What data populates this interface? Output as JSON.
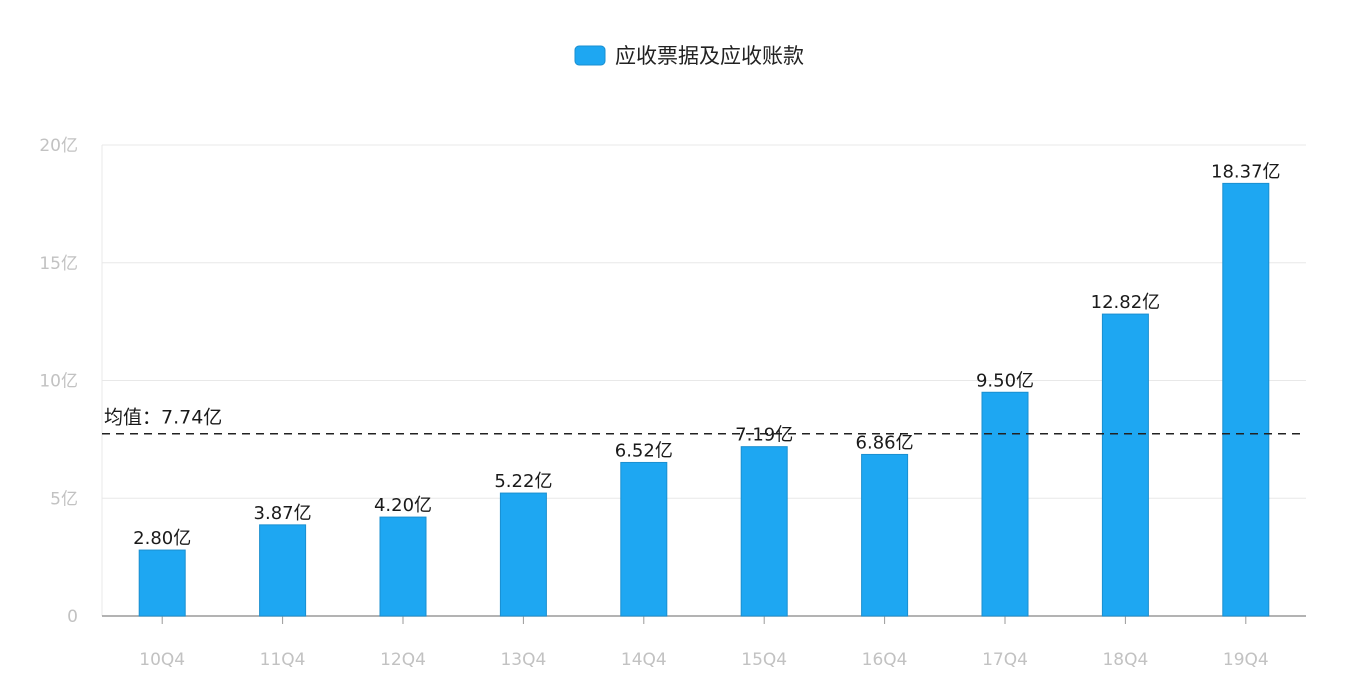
{
  "chart_data": {
    "type": "bar",
    "title": "",
    "xlabel": "",
    "ylabel": "",
    "categories": [
      "10Q4",
      "11Q4",
      "12Q4",
      "13Q4",
      "14Q4",
      "15Q4",
      "16Q4",
      "17Q4",
      "18Q4",
      "19Q4"
    ],
    "series": [
      {
        "name": "应收票据及应收账款",
        "values": [
          2.8,
          3.87,
          4.2,
          5.22,
          6.52,
          7.19,
          6.86,
          9.5,
          12.82,
          18.37
        ],
        "value_labels": [
          "2.80亿",
          "3.87亿",
          "4.20亿",
          "5.22亿",
          "6.52亿",
          "7.19亿",
          "6.86亿",
          "9.50亿",
          "12.82亿",
          "18.37亿"
        ]
      }
    ],
    "ylim": [
      0,
      20
    ],
    "yticks": [
      0,
      5,
      10,
      15,
      20
    ],
    "ytick_labels": [
      "0",
      "5亿",
      "10亿",
      "15亿",
      "20亿"
    ],
    "grid": true,
    "legend_position": "top-center",
    "mean_line": {
      "value": 7.74,
      "label": "均值：7.74亿"
    },
    "colors": {
      "bar": "#1ea7f2",
      "bar_border": "#1a8fd0",
      "grid": "#e8e8e8",
      "axis": "#9a9a9a",
      "mean_line": "#222222"
    }
  }
}
